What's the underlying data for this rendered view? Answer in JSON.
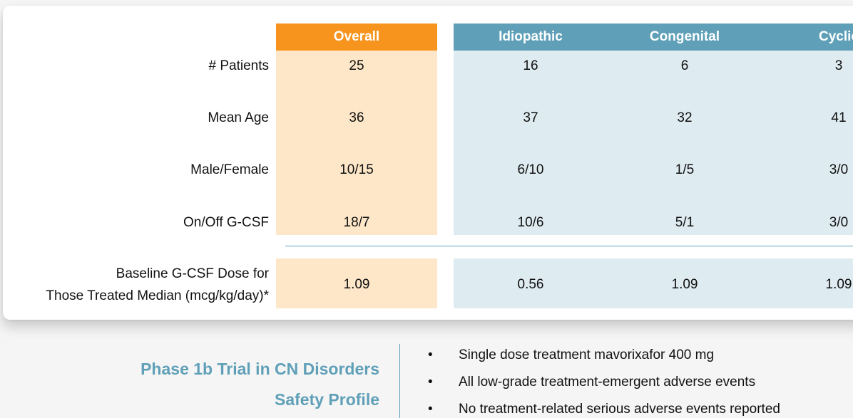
{
  "table": {
    "headers": {
      "overall": "Overall",
      "idiopathic": "Idiopathic",
      "congenital": "Congenital",
      "cyclic": "Cyclic"
    },
    "rows": [
      {
        "label": "# Patients",
        "overall": "25",
        "idiopathic": "16",
        "congenital": "6",
        "cyclic": "3"
      },
      {
        "label": "Mean Age",
        "overall": "36",
        "idiopathic": "37",
        "congenital": "32",
        "cyclic": "41"
      },
      {
        "label": "Male/Female",
        "overall": "10/15",
        "idiopathic": "6/10",
        "congenital": "1/5",
        "cyclic": "3/0"
      },
      {
        "label": "On/Off G-CSF",
        "overall": "18/7",
        "idiopathic": "10/6",
        "congenital": "5/1",
        "cyclic": "3/0"
      }
    ],
    "baseline": {
      "label_line1": "Baseline G-CSF Dose for",
      "label_line2": "Those Treated Median (mcg/kg/day)*",
      "overall": "1.09",
      "idiopathic": "0.56",
      "congenital": "1.09",
      "cyclic": "1.09"
    }
  },
  "section": {
    "title_line1": "Phase 1b Trial in CN Disorders",
    "title_line2": "Safety Profile",
    "bullet_char": "•",
    "bullets": [
      "Single dose treatment mavorixafor 400 mg",
      "All low-grade treatment-emergent adverse events",
      "No treatment-related serious adverse events reported"
    ]
  },
  "colors": {
    "overall_header": "#f7941d",
    "overall_band": "#fde7c8",
    "subgroup_header": "#5fa0b8",
    "subgroup_band": "#deebf0",
    "title_text": "#5fa0b8"
  }
}
